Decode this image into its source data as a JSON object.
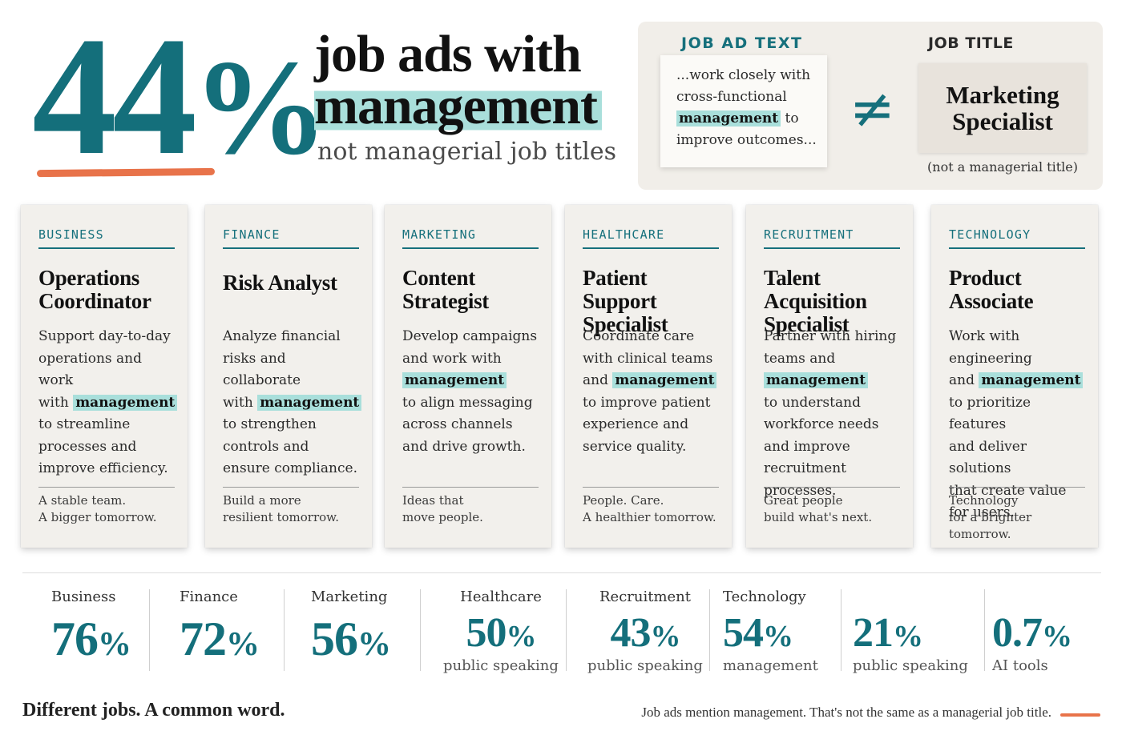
{
  "hero": {
    "stat": "44",
    "stat_unit": "%",
    "line1": "job ads with",
    "line2": "management",
    "line3": "not managerial job titles"
  },
  "comparison": {
    "ad_label": "JOB AD TEXT",
    "ad_lines": [
      "...work closely with",
      "cross-functional"
    ],
    "ad_highlight": "management",
    "ad_after": " to",
    "ad_last": "improve outcomes...",
    "not_equal": "≠",
    "title_label": "JOB TITLE",
    "title_line1": "Marketing",
    "title_line2": "Specialist",
    "title_note": "(not a managerial title)"
  },
  "cards": [
    {
      "category": "BUSINESS",
      "title": [
        "Operations",
        "Coordinator"
      ],
      "body_before": [
        "Support day-to-day",
        "operations and work",
        "with "
      ],
      "highlight": "management",
      "body_after": [
        "to streamline",
        "processes and",
        "improve efficiency."
      ],
      "footer": [
        "A stable team.",
        "A bigger tomorrow."
      ]
    },
    {
      "category": "FINANCE",
      "title": [
        "Risk Analyst"
      ],
      "body_before": [
        "Analyze financial",
        "risks and collaborate",
        "with "
      ],
      "highlight": "management",
      "body_after": [
        "to strengthen",
        "controls and",
        "ensure compliance."
      ],
      "footer": [
        "Build a more",
        "resilient tomorrow."
      ]
    },
    {
      "category": "MARKETING",
      "title": [
        "Content",
        "Strategist"
      ],
      "body_before": [
        "Develop campaigns",
        "and work with",
        ""
      ],
      "highlight": "management",
      "body_after": [
        "to align messaging",
        "across channels",
        "and drive growth."
      ],
      "footer": [
        "Ideas that",
        "move people."
      ]
    },
    {
      "category": "HEALTHCARE",
      "title": [
        "Patient",
        "Support Specialist"
      ],
      "body_before": [
        "Coordinate care",
        "with clinical teams",
        "and "
      ],
      "highlight": "management",
      "body_after": [
        "to improve patient",
        "experience and",
        "service quality."
      ],
      "footer": [
        "People. Care.",
        "A healthier tomorrow."
      ]
    },
    {
      "category": "RECRUITMENT",
      "title": [
        "Talent Acquisition",
        "Specialist"
      ],
      "body_before": [
        "Partner with hiring",
        "teams and",
        ""
      ],
      "highlight": "management",
      "body_after": [
        "to understand",
        "workforce needs",
        "and improve",
        "recruitment processes."
      ],
      "footer": [
        "Great people",
        "build what's next."
      ]
    },
    {
      "category": "TECHNOLOGY",
      "title": [
        "Product",
        "Associate"
      ],
      "body_before": [
        "Work with engineering",
        "and "
      ],
      "highlight": "management",
      "body_after": [
        "to prioritize features",
        "and deliver solutions",
        "that create value",
        "for users."
      ],
      "footer": [
        "Technology",
        "for a brighter tomorrow."
      ]
    }
  ],
  "stats": [
    {
      "label": "Business",
      "value": "76",
      "unit": "%",
      "sub": ""
    },
    {
      "label": "Finance",
      "value": "72",
      "unit": "%",
      "sub": ""
    },
    {
      "label": "Marketing",
      "value": "56",
      "unit": "%",
      "sub": ""
    },
    {
      "label": "Healthcare",
      "value": "50",
      "unit": "%",
      "sub": "public speaking"
    },
    {
      "label": "Recruitment",
      "value": "43",
      "unit": "%",
      "sub": "public speaking"
    },
    {
      "label": "Technology",
      "value": "54",
      "unit": "%",
      "sub": "management"
    },
    {
      "label": "",
      "value": "21",
      "unit": "%",
      "sub": "public speaking"
    },
    {
      "label": "",
      "value": "0.7",
      "unit": "%",
      "sub": "AI tools"
    }
  ],
  "footer": {
    "left": "Different jobs. A common word.",
    "right": "Job ads mention management. That's not the same as a managerial job title."
  },
  "colors": {
    "teal": "#146f7b",
    "highlight": "#a9dfdb",
    "accent_orange": "#e8734a",
    "panel": "#f1eee9",
    "card": "#f2f0ec"
  }
}
